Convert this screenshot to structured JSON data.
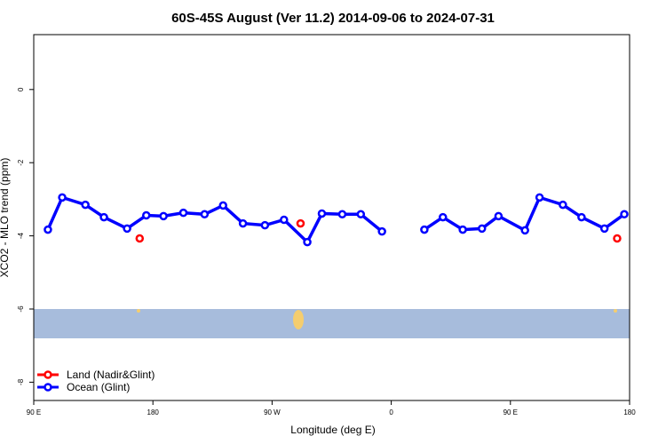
{
  "chart_data": {
    "type": "line",
    "title": "60S-45S August (Ver 11.2)   2014-09-06 to 2024-07-31",
    "x_label": "Longitude (deg E)",
    "y_label": "XCO2 - MLO trend (ppm)",
    "xlim": [
      90,
      540
    ],
    "ylim": [
      -8.5,
      1.5
    ],
    "xticks": [
      {
        "value": 90,
        "label": "90 E"
      },
      180,
      {
        "value": 270,
        "label": "90 W"
      },
      {
        "value": 360,
        "label": "0"
      },
      {
        "value": 450,
        "label": "90 E"
      },
      {
        "value": 540,
        "label": "180"
      }
    ],
    "yticks": [
      0,
      -2,
      -4,
      -6,
      -8
    ],
    "legend": "bottom-left",
    "series": [
      {
        "name": "Land (Nadir&Glint)",
        "color": "#ff0000",
        "x": [
          170,
          291.5,
          530.6
        ],
        "values": [
          -4.07,
          -3.66,
          -4.07
        ]
      },
      {
        "name": "Ocean (Glint)",
        "color": "#0000ff",
        "x": [
          100.7,
          111.5,
          129,
          143,
          160.5,
          175,
          188,
          203,
          219,
          233,
          248,
          264.6,
          279,
          296.6,
          307.6,
          323,
          337,
          353,
          null,
          385,
          399,
          414,
          428.5,
          441,
          461,
          472,
          489.6,
          503.7,
          521,
          536
        ],
        "values": [
          -3.83,
          -2.95,
          -3.15,
          -3.49,
          -3.8,
          -3.44,
          -3.46,
          -3.37,
          -3.41,
          -3.17,
          -3.66,
          -3.71,
          -3.56,
          -4.17,
          -3.39,
          -3.41,
          -3.41,
          -3.88,
          null,
          -3.83,
          -3.49,
          -3.83,
          -3.8,
          -3.46,
          -3.85,
          -2.95,
          -3.15,
          -3.49,
          -3.8,
          -3.41
        ]
      }
    ]
  }
}
